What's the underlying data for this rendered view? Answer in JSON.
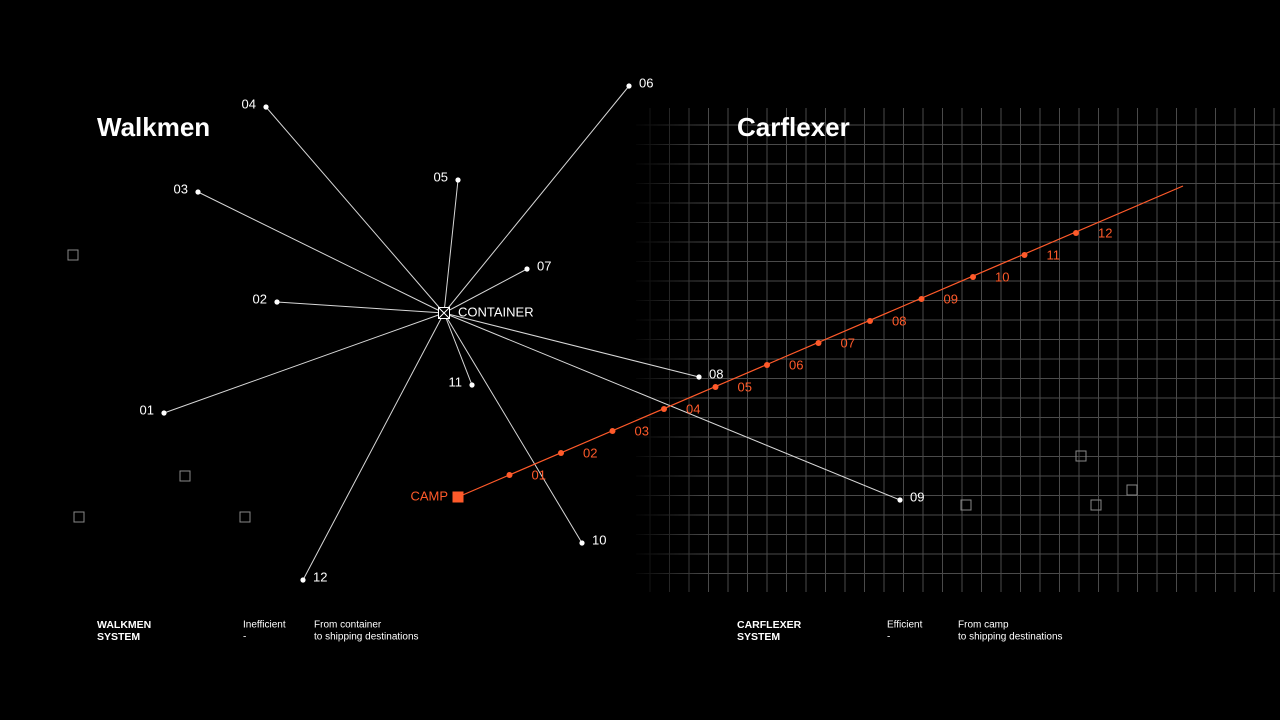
{
  "walkmen": {
    "title": "Walkmen",
    "hub": "CONTAINER",
    "destinations": [
      "01",
      "02",
      "03",
      "04",
      "05",
      "06",
      "07",
      "08",
      "09",
      "10",
      "11",
      "12"
    ]
  },
  "carflexer": {
    "title": "Carflexer",
    "start": "CAMP",
    "stops": [
      "01",
      "02",
      "03",
      "04",
      "05",
      "06",
      "07",
      "08",
      "09",
      "10",
      "11",
      "12"
    ]
  },
  "footer": [
    {
      "name": [
        "WALKMEN",
        "SYSTEM"
      ],
      "rating": [
        "Inefficient",
        "-"
      ],
      "route": [
        "From container",
        "to shipping destinations"
      ]
    },
    {
      "name": [
        "CARFLEXER",
        "SYSTEM"
      ],
      "rating": [
        "Efficient",
        "-"
      ],
      "route": [
        "From camp",
        "to shipping destinations"
      ]
    }
  ]
}
